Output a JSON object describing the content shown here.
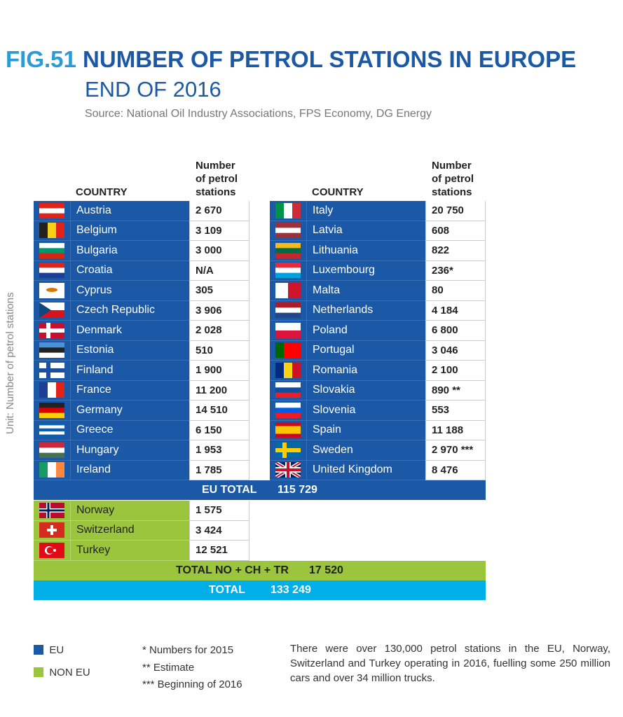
{
  "header": {
    "fig": "FIG.51",
    "title": "NUMBER OF PETROL STATIONS IN EUROPE",
    "subtitle": "END OF 2016",
    "source": "Source: National Oil Industry Associations, FPS Economy, DG Energy"
  },
  "unit_label": "Unit: Number of petrol stations",
  "colors": {
    "eu": "#1b58a5",
    "non_eu": "#9bc53d",
    "total": "#00aee8"
  },
  "chart_data": {
    "type": "table",
    "columns": [
      "COUNTRY",
      "Number of petrol stations"
    ],
    "eu_left": [
      {
        "country": "Austria",
        "value": "2 670"
      },
      {
        "country": "Belgium",
        "value": "3 109"
      },
      {
        "country": "Bulgaria",
        "value": "3 000"
      },
      {
        "country": "Croatia",
        "value": "N/A"
      },
      {
        "country": "Cyprus",
        "value": "305"
      },
      {
        "country": "Czech Republic",
        "value": "3 906"
      },
      {
        "country": "Denmark",
        "value": "2 028"
      },
      {
        "country": "Estonia",
        "value": "510"
      },
      {
        "country": "Finland",
        "value": "1 900"
      },
      {
        "country": "France",
        "value": "11 200"
      },
      {
        "country": "Germany",
        "value": "14 510"
      },
      {
        "country": "Greece",
        "value": "6 150"
      },
      {
        "country": "Hungary",
        "value": "1  953"
      },
      {
        "country": "Ireland",
        "value": "1 785"
      }
    ],
    "eu_right": [
      {
        "country": "Italy",
        "value": "20 750"
      },
      {
        "country": "Latvia",
        "value": "608"
      },
      {
        "country": "Lithuania",
        "value": "822"
      },
      {
        "country": "Luxembourg",
        "value": "236*"
      },
      {
        "country": "Malta",
        "value": "80"
      },
      {
        "country": "Netherlands",
        "value": "4 184"
      },
      {
        "country": "Poland",
        "value": "6 800"
      },
      {
        "country": "Portugal",
        "value": "3 046"
      },
      {
        "country": "Romania",
        "value": "2 100"
      },
      {
        "country": "Slovakia",
        "value": "890 **"
      },
      {
        "country": "Slovenia",
        "value": "553"
      },
      {
        "country": "Spain",
        "value": "11 188"
      },
      {
        "country": "Sweden",
        "value": "2 970 ***"
      },
      {
        "country": "United Kingdom",
        "value": "8 476"
      }
    ],
    "non_eu": [
      {
        "country": "Norway",
        "value": "1 575"
      },
      {
        "country": "Switzerland",
        "value": "3 424"
      },
      {
        "country": "Turkey",
        "value": "12 521"
      }
    ],
    "eu_total": {
      "label": "EU TOTAL",
      "value": "115 729"
    },
    "non_eu_total": {
      "label": "TOTAL NO + CH + TR",
      "value": "17 520"
    },
    "total": {
      "label": "TOTAL",
      "value": "133 249"
    }
  },
  "table_header": {
    "country": "COUNTRY",
    "num1": "Number",
    "num2": "of petrol",
    "num3": "stations"
  },
  "legend": {
    "eu": "EU",
    "non_eu": "NON EU"
  },
  "notes": [
    "*  Numbers for 2015",
    "** Estimate",
    "*** Beginning of 2016"
  ],
  "footnote": "There were over 130,000 petrol stations in the EU, Norway, Switzerland and Turkey operating in 2016, fuelling some 250 million cars and over 34 million trucks."
}
